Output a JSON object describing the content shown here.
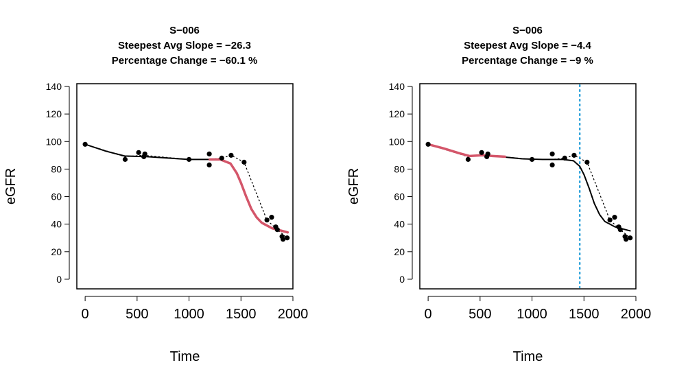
{
  "chart_data": [
    {
      "type": "line",
      "panel": "left",
      "title": "S−006",
      "subtitle_lines": [
        "Steepest Avg Slope =  −26.3",
        "Percentage Change =  −60.1 %"
      ],
      "xlabel": "Time",
      "ylabel": "eGFR",
      "xlim": [
        -80,
        2000
      ],
      "ylim": [
        -7,
        142
      ],
      "x_ticks": [
        "0",
        "500",
        "1000",
        "1500",
        "2000"
      ],
      "y_ticks": [
        "0",
        "20",
        "40",
        "60",
        "80",
        "100",
        "120",
        "140"
      ],
      "points": [
        {
          "x": 0,
          "y": 98
        },
        {
          "x": 385,
          "y": 87
        },
        {
          "x": 515,
          "y": 92
        },
        {
          "x": 565,
          "y": 89
        },
        {
          "x": 575,
          "y": 91
        },
        {
          "x": 1000,
          "y": 87
        },
        {
          "x": 1195,
          "y": 91
        },
        {
          "x": 1195,
          "y": 83
        },
        {
          "x": 1315,
          "y": 88
        },
        {
          "x": 1405,
          "y": 90
        },
        {
          "x": 1530,
          "y": 85
        },
        {
          "x": 1750,
          "y": 43
        },
        {
          "x": 1795,
          "y": 45
        },
        {
          "x": 1835,
          "y": 38
        },
        {
          "x": 1850,
          "y": 36
        },
        {
          "x": 1895,
          "y": 31
        },
        {
          "x": 1905,
          "y": 29
        },
        {
          "x": 1945,
          "y": 30
        }
      ],
      "fit_curve": [
        {
          "x": 0,
          "y": 98
        },
        {
          "x": 200,
          "y": 93
        },
        {
          "x": 380,
          "y": 89.5
        },
        {
          "x": 600,
          "y": 89
        },
        {
          "x": 800,
          "y": 88
        },
        {
          "x": 1000,
          "y": 87
        },
        {
          "x": 1200,
          "y": 87
        },
        {
          "x": 1300,
          "y": 87
        }
      ],
      "highlight_curve": [
        {
          "x": 1200,
          "y": 87
        },
        {
          "x": 1300,
          "y": 87
        },
        {
          "x": 1400,
          "y": 84
        },
        {
          "x": 1460,
          "y": 77
        },
        {
          "x": 1500,
          "y": 70
        },
        {
          "x": 1550,
          "y": 60
        },
        {
          "x": 1600,
          "y": 51
        },
        {
          "x": 1650,
          "y": 45
        },
        {
          "x": 1700,
          "y": 41
        },
        {
          "x": 1800,
          "y": 37
        },
        {
          "x": 1900,
          "y": 35
        },
        {
          "x": 1950,
          "y": 34
        }
      ],
      "dotted_trend": [
        {
          "x": 0,
          "y": 98
        },
        {
          "x": 385,
          "y": 89
        },
        {
          "x": 560,
          "y": 90
        },
        {
          "x": 1000,
          "y": 87
        },
        {
          "x": 1195,
          "y": 87
        },
        {
          "x": 1315,
          "y": 88
        },
        {
          "x": 1405,
          "y": 90
        },
        {
          "x": 1530,
          "y": 85
        },
        {
          "x": 1750,
          "y": 43
        },
        {
          "x": 1835,
          "y": 37
        },
        {
          "x": 1945,
          "y": 30
        }
      ],
      "vline": null,
      "colors": {
        "highlight": "#d4566a",
        "fit": "#000000",
        "vline": "#1c9bd8"
      }
    },
    {
      "type": "line",
      "panel": "right",
      "title": "S−006",
      "subtitle_lines": [
        "Steepest Avg Slope =  −4.4",
        "Percentage Change =  −9 %"
      ],
      "xlabel": "Time",
      "ylabel": "eGFR",
      "xlim": [
        -80,
        2000
      ],
      "ylim": [
        -7,
        142
      ],
      "x_ticks": [
        "0",
        "500",
        "1000",
        "1500",
        "2000"
      ],
      "y_ticks": [
        "0",
        "20",
        "40",
        "60",
        "80",
        "100",
        "120",
        "140"
      ],
      "points": [
        {
          "x": 0,
          "y": 98
        },
        {
          "x": 385,
          "y": 87
        },
        {
          "x": 515,
          "y": 92
        },
        {
          "x": 565,
          "y": 89
        },
        {
          "x": 575,
          "y": 91
        },
        {
          "x": 1000,
          "y": 87
        },
        {
          "x": 1195,
          "y": 91
        },
        {
          "x": 1195,
          "y": 83
        },
        {
          "x": 1315,
          "y": 88
        },
        {
          "x": 1405,
          "y": 90
        },
        {
          "x": 1530,
          "y": 85
        },
        {
          "x": 1750,
          "y": 43
        },
        {
          "x": 1795,
          "y": 45
        },
        {
          "x": 1835,
          "y": 38
        },
        {
          "x": 1850,
          "y": 36
        },
        {
          "x": 1895,
          "y": 31
        },
        {
          "x": 1905,
          "y": 29
        },
        {
          "x": 1945,
          "y": 30
        }
      ],
      "fit_curve": [
        {
          "x": 700,
          "y": 89
        },
        {
          "x": 900,
          "y": 87.5
        },
        {
          "x": 1100,
          "y": 87
        },
        {
          "x": 1300,
          "y": 87
        },
        {
          "x": 1400,
          "y": 86
        },
        {
          "x": 1460,
          "y": 82
        },
        {
          "x": 1500,
          "y": 76
        },
        {
          "x": 1550,
          "y": 66
        },
        {
          "x": 1600,
          "y": 55
        },
        {
          "x": 1650,
          "y": 47
        },
        {
          "x": 1700,
          "y": 42
        },
        {
          "x": 1800,
          "y": 38
        },
        {
          "x": 1900,
          "y": 36
        },
        {
          "x": 1950,
          "y": 35
        }
      ],
      "highlight_curve": [
        {
          "x": 0,
          "y": 98
        },
        {
          "x": 150,
          "y": 95
        },
        {
          "x": 300,
          "y": 91.5
        },
        {
          "x": 400,
          "y": 89.5
        },
        {
          "x": 520,
          "y": 90
        },
        {
          "x": 620,
          "y": 89.5
        },
        {
          "x": 740,
          "y": 89
        }
      ],
      "dotted_trend": [
        {
          "x": 0,
          "y": 98
        },
        {
          "x": 385,
          "y": 89
        },
        {
          "x": 560,
          "y": 90
        },
        {
          "x": 1000,
          "y": 87
        },
        {
          "x": 1195,
          "y": 87
        },
        {
          "x": 1315,
          "y": 88
        },
        {
          "x": 1405,
          "y": 90
        },
        {
          "x": 1530,
          "y": 85
        },
        {
          "x": 1750,
          "y": 43
        },
        {
          "x": 1835,
          "y": 37
        },
        {
          "x": 1945,
          "y": 30
        }
      ],
      "vline": 1460,
      "colors": {
        "highlight": "#d4566a",
        "fit": "#000000",
        "vline": "#1c9bd8"
      }
    }
  ]
}
